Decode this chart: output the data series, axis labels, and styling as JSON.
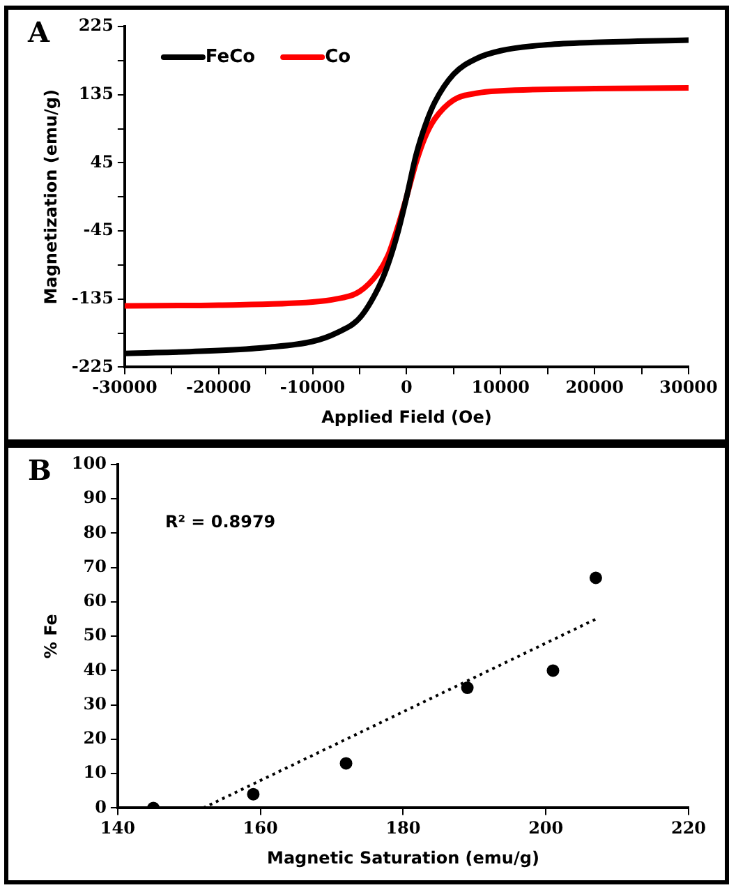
{
  "chart_data": [
    {
      "type": "line",
      "title": "A",
      "xlabel": "Applied Field (Oe)",
      "ylabel": "Magnetization (emu/g)",
      "legend": "top left",
      "marker": "none",
      "xlim": [
        -30000,
        30000
      ],
      "xticks": [
        -30000,
        {
          "value": -25000,
          "label": null
        },
        -20000,
        {
          "value": -15000,
          "label": null
        },
        -10000,
        {
          "value": -5000,
          "label": null
        },
        0,
        {
          "value": 5000,
          "label": null
        },
        10000,
        {
          "value": 15000,
          "label": null
        },
        20000,
        {
          "value": 25000,
          "label": null
        },
        30000
      ],
      "ylim": [
        -225,
        225
      ],
      "yticks": [
        -225,
        {
          "value": -180,
          "label": null
        },
        -135,
        {
          "value": -90,
          "label": null
        },
        -45,
        {
          "value": 0,
          "label": null
        },
        45,
        {
          "value": 90,
          "label": null
        },
        135,
        {
          "value": 180,
          "label": null
        },
        225
      ],
      "series": [
        {
          "name": "FeCo",
          "color": "#000000",
          "x": [
            -30000,
            -20000,
            -15000,
            -10000,
            -7500,
            -5000,
            -3000,
            -2000,
            -1000,
            0,
            1000,
            2000,
            3000,
            5000,
            7500,
            10000,
            15000,
            20000,
            30000
          ],
          "values": [
            -207,
            -203,
            -199,
            -191,
            -180,
            -160,
            -120,
            -90,
            -50,
            0,
            55,
            95,
            125,
            162,
            183,
            193,
            201,
            204,
            207
          ]
        },
        {
          "name": "Co",
          "color": "#ff0000",
          "x": [
            -30000,
            -20000,
            -10000,
            -7500,
            -5000,
            -3000,
            -2000,
            -1000,
            0,
            1000,
            2000,
            3000,
            5000,
            7500,
            10000,
            20000,
            30000
          ],
          "values": [
            -144,
            -143,
            -139,
            -135,
            -125,
            -100,
            -78,
            -42,
            0,
            45,
            80,
            103,
            128,
            137,
            140,
            143,
            144
          ]
        }
      ]
    },
    {
      "type": "scatter",
      "title": "B",
      "xlabel": "Magnetic Saturation (emu/g)",
      "ylabel": "% Fe",
      "marker": "circle",
      "annotations": [
        "R² = 0.8979"
      ],
      "xlim": [
        140,
        220
      ],
      "xticks": [
        140,
        160,
        180,
        200,
        220
      ],
      "ylim": [
        0,
        100
      ],
      "yticks": [
        0,
        10,
        20,
        30,
        40,
        50,
        60,
        70,
        80,
        90,
        100
      ],
      "series": [
        {
          "type": "scatter",
          "color": "#000000",
          "x": [
            145,
            159,
            172,
            189,
            201,
            207
          ],
          "values": [
            0,
            4,
            13,
            35,
            40,
            67
          ]
        },
        {
          "type": "line",
          "color": "#000000",
          "marker": "none",
          "line_style": "dotted",
          "x": [
            152,
            207
          ],
          "values": [
            0,
            55
          ]
        }
      ]
    }
  ]
}
